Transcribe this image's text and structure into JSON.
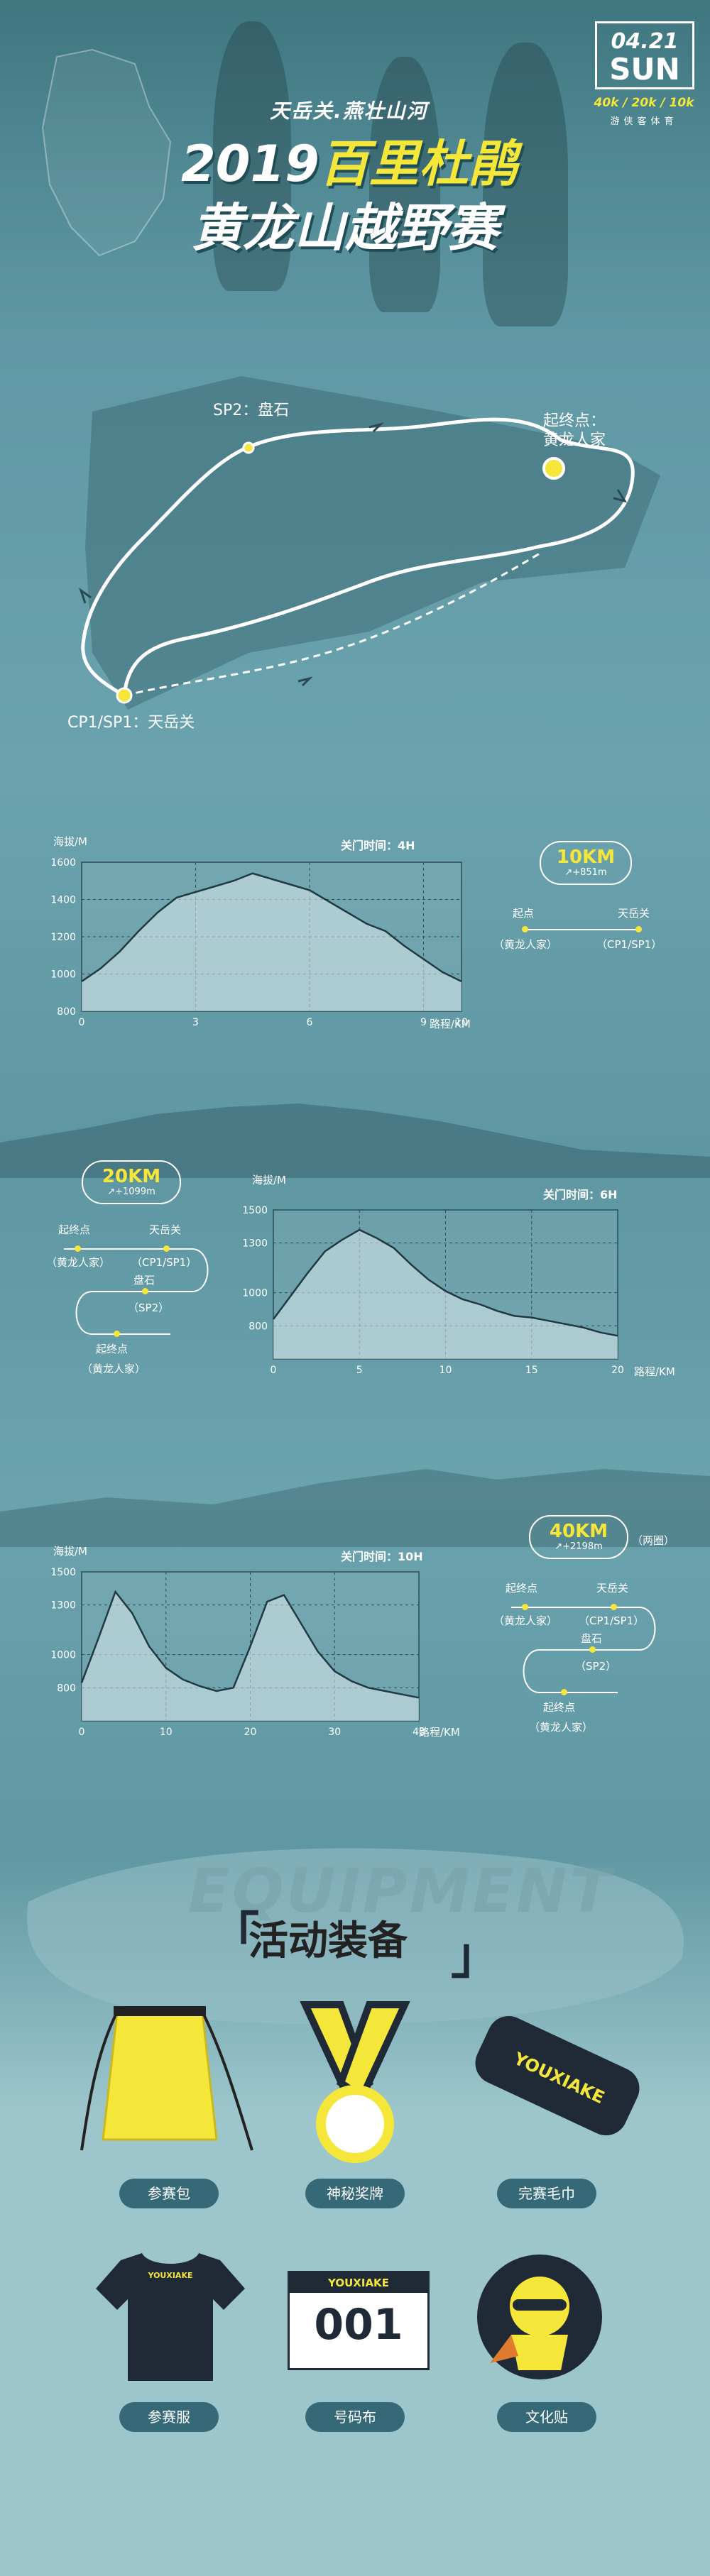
{
  "hero": {
    "date": "04.21",
    "weekday": "SUN",
    "distances": "40k / 20k / 10k",
    "organizer": "游侠客体育",
    "subtitle": "天岳关.燕壮山河",
    "title_line1_year": "2019",
    "title_line1_highlight": "百里杜鹃",
    "title_line2": "黄龙山越野赛"
  },
  "map": {
    "sp2": "SP2：盘石",
    "start_line1": "起终点：",
    "start_line2": "黄龙人家",
    "cp1": "CP1/SP1：天岳关"
  },
  "race10": {
    "ylabel": "海拔/M",
    "xlabel": "路程/KM",
    "cutoff": "关门时间：4H",
    "km": "10KM",
    "climb": "↗+851m",
    "route": {
      "a": "起点",
      "a_sub": "（黄龙人家）",
      "b": "天岳关",
      "b_sub": "（CP1/SP1）"
    },
    "chart_data": {
      "type": "area",
      "x": [
        0,
        0.5,
        1,
        1.5,
        2,
        2.5,
        3,
        3.5,
        4,
        4.5,
        5,
        5.5,
        6,
        6.5,
        7,
        7.5,
        8,
        8.5,
        9,
        9.5,
        10
      ],
      "y": [
        960,
        1030,
        1120,
        1230,
        1330,
        1410,
        1440,
        1470,
        1500,
        1540,
        1510,
        1480,
        1450,
        1390,
        1330,
        1270,
        1230,
        1150,
        1080,
        1010,
        960
      ],
      "ylim": [
        800,
        1600
      ],
      "xlim": [
        0,
        10
      ],
      "yticks": [
        800,
        1000,
        1200,
        1400,
        1600
      ],
      "xticks": [
        0,
        3,
        6,
        9,
        10
      ]
    }
  },
  "race20": {
    "ylabel": "海拔/M",
    "xlabel": "路程/KM",
    "cutoff": "关门时间：6H",
    "km": "20KM",
    "climb": "↗+1099m",
    "route": {
      "a": "起终点",
      "a_sub": "（黄龙人家）",
      "b": "天岳关",
      "b_sub": "（CP1/SP1）",
      "c": "盘石",
      "c_sub": "（SP2）",
      "d": "起终点",
      "d_sub": "（黄龙人家）"
    },
    "chart_data": {
      "type": "area",
      "x": [
        0,
        1,
        2,
        3,
        4,
        5,
        6,
        7,
        8,
        9,
        10,
        11,
        12,
        13,
        14,
        15,
        16,
        17,
        18,
        19,
        20
      ],
      "y": [
        840,
        980,
        1120,
        1250,
        1320,
        1380,
        1330,
        1270,
        1170,
        1080,
        1010,
        960,
        930,
        890,
        860,
        850,
        830,
        810,
        790,
        760,
        740
      ],
      "ylim": [
        600,
        1500
      ],
      "xlim": [
        0,
        20
      ],
      "yticks": [
        800,
        1000,
        1300,
        1500
      ],
      "xticks": [
        0,
        5,
        10,
        15,
        20
      ]
    }
  },
  "race40": {
    "ylabel": "海拔/M",
    "xlabel": "路程/KM",
    "cutoff": "关门时间：10H",
    "km": "40KM",
    "climb": "↗+2198m",
    "loop_note": "（两圈）",
    "route": {
      "a": "起终点",
      "a_sub": "（黄龙人家）",
      "b": "天岳关",
      "b_sub": "（CP1/SP1）",
      "c": "盘石",
      "c_sub": "（SP2）",
      "d": "起终点",
      "d_sub": "（黄龙人家）"
    },
    "chart_data": {
      "type": "area",
      "x": [
        0,
        2,
        4,
        6,
        8,
        10,
        12,
        14,
        16,
        18,
        20,
        22,
        24,
        26,
        28,
        30,
        32,
        34,
        36,
        38,
        40
      ],
      "y": [
        830,
        1100,
        1380,
        1250,
        1050,
        920,
        850,
        810,
        780,
        800,
        1050,
        1320,
        1360,
        1190,
        1020,
        900,
        840,
        800,
        780,
        760,
        740
      ],
      "ylim": [
        600,
        1500
      ],
      "xlim": [
        0,
        40
      ],
      "yticks": [
        800,
        1000,
        1300,
        1500
      ],
      "xticks": [
        0,
        10,
        20,
        30,
        40
      ]
    }
  },
  "equipment": {
    "ghost": "EQUIPMENT",
    "title": "活动装备",
    "items": [
      {
        "label": "参赛包"
      },
      {
        "label": "神秘奖牌"
      },
      {
        "label": "完赛毛巾"
      },
      {
        "label": "参赛服"
      },
      {
        "label": "号码布"
      },
      {
        "label": "文化贴"
      }
    ],
    "brand": "YOUXIAKE",
    "bib_number": "001",
    "colors": {
      "yellow": "#f5e63a",
      "navy": "#1f2a36",
      "label_bg": "#356978"
    }
  }
}
